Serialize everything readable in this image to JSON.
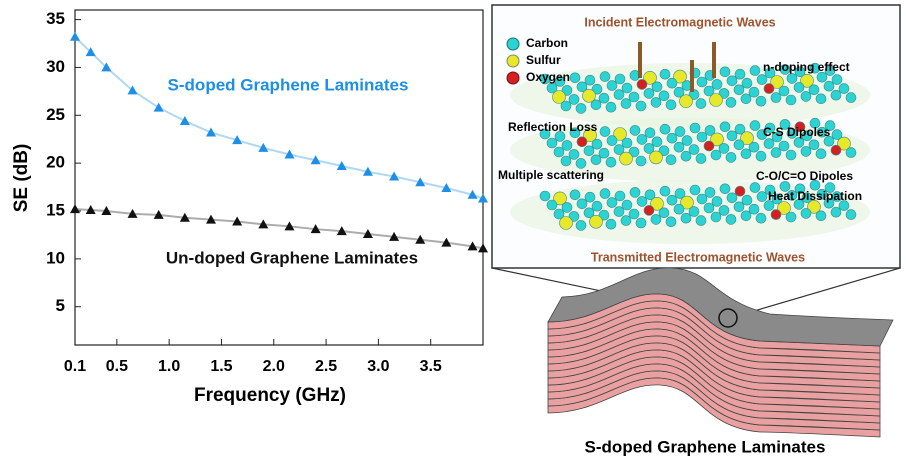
{
  "chart_data": {
    "type": "scatter",
    "y_label": "SE (dB)",
    "x_label": "Frequency (GHz)",
    "annotations": [
      "S-doped Graphene Laminates",
      "Un-doped Graphene Laminates"
    ],
    "x": [
      0.1,
      0.25,
      0.4,
      0.65,
      0.9,
      1.15,
      1.4,
      1.65,
      1.9,
      2.15,
      2.4,
      2.65,
      2.9,
      3.15,
      3.4,
      3.65,
      3.9,
      4.0
    ],
    "series": [
      {
        "name": "S-doped Graphene Laminates",
        "color": "#1e8fe6",
        "values": [
          33.2,
          31.6,
          30.0,
          27.6,
          25.8,
          24.4,
          23.2,
          22.4,
          21.6,
          20.9,
          20.3,
          19.7,
          19.1,
          18.6,
          18.0,
          17.4,
          16.7,
          16.3
        ]
      },
      {
        "name": "Un-doped Graphene Laminates",
        "color": "#111111",
        "values": [
          15.2,
          15.1,
          15.0,
          14.7,
          14.6,
          14.3,
          14.1,
          13.9,
          13.6,
          13.4,
          13.1,
          12.9,
          12.6,
          12.3,
          12.0,
          11.7,
          11.3,
          11.1
        ]
      }
    ],
    "xlim": [
      0.1,
      4.0
    ],
    "ylim": [
      1,
      36
    ],
    "xticks": [
      0.1,
      0.5,
      {
        "value": 1,
        "label": "1.0"
      },
      1.5,
      {
        "value": 2,
        "label": "2.0"
      },
      2.5,
      {
        "value": 3,
        "label": "3.0"
      },
      3.5
    ],
    "yticks": [
      5,
      10,
      15,
      20,
      25,
      30,
      35
    ]
  },
  "illustration": {
    "top_label": "Incident Electromagnetic Waves",
    "legend": [
      "Carbon",
      "Sulfur",
      "Oxygen"
    ],
    "labels": [
      "n-doping effect",
      "Reflection Loss",
      "C-S Dipoles",
      "Multiple scattering",
      "C-O/C=O Dipoles",
      "Heat Dissipation"
    ],
    "bottom_label": "Transmitted Electromagnetic Waves",
    "caption": "S-doped Graphene Laminates"
  }
}
